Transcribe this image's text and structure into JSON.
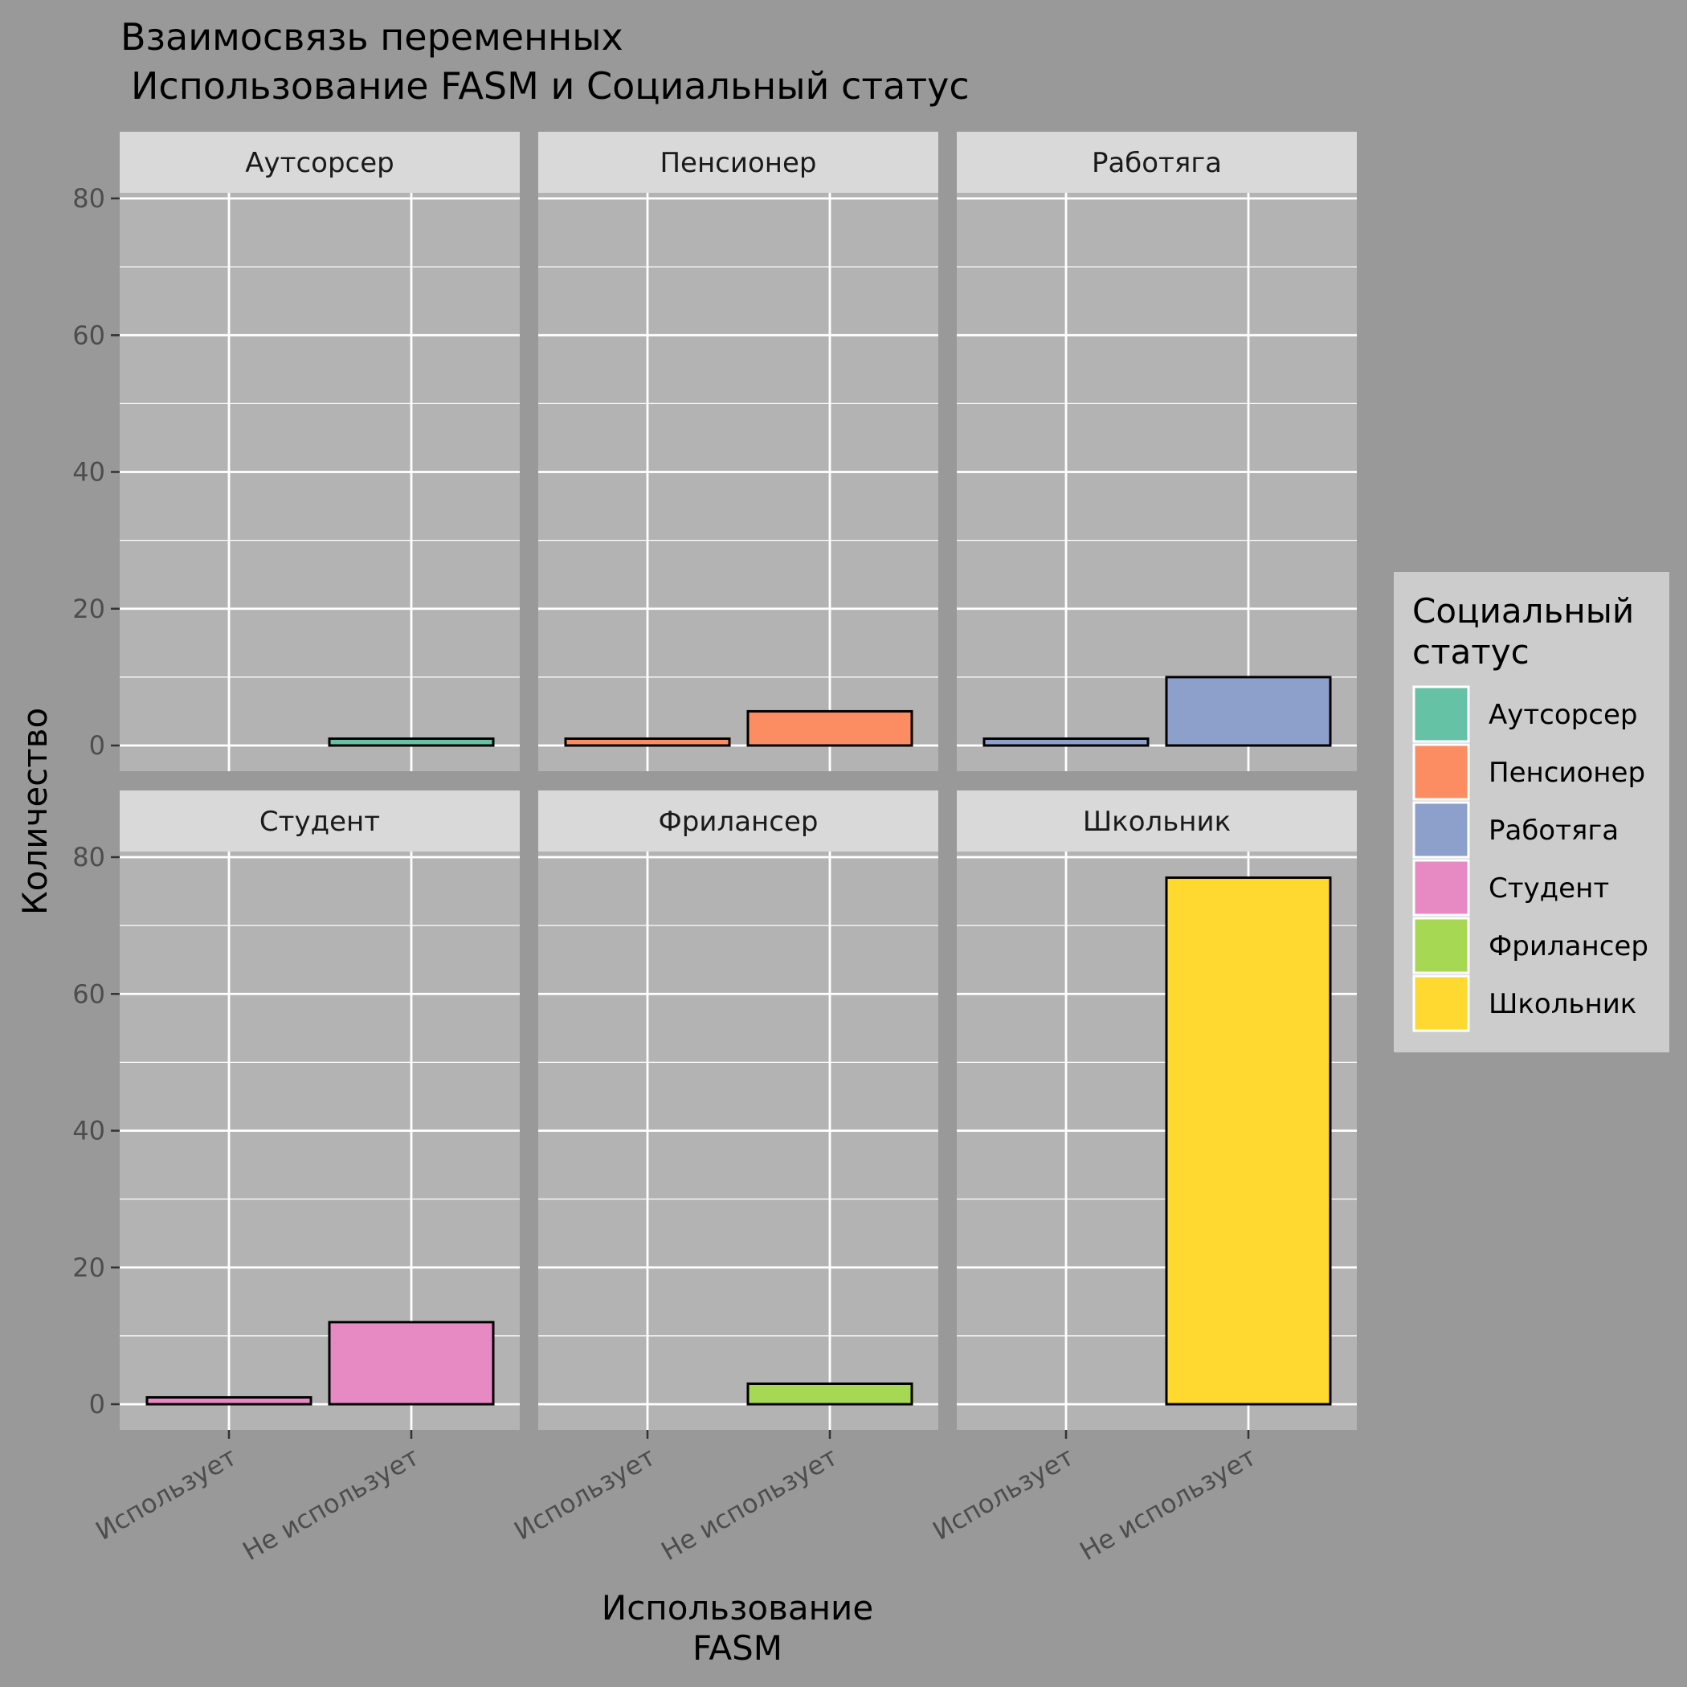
{
  "chart_data": {
    "type": "bar",
    "title_lines": [
      "Взаимосвязь переменных",
      "Использование FASM и Социальный статус"
    ],
    "xlabel_lines": [
      "Использование",
      "FASM"
    ],
    "ylabel": "Количество",
    "ylim": [
      0,
      80
    ],
    "yticks": [
      "0",
      "20",
      "40",
      "60",
      "80"
    ],
    "categories": [
      "Использует",
      "Не использует"
    ],
    "grid": true,
    "legend": {
      "title_lines": [
        "Социальный",
        "статус"
      ],
      "position": "right"
    },
    "facets": [
      {
        "name": "Аутсорсер",
        "color": "#66C2A5",
        "values": [
          0,
          1
        ]
      },
      {
        "name": "Пенсионер",
        "color": "#FC8D62",
        "values": [
          1,
          5
        ]
      },
      {
        "name": "Работяга",
        "color": "#8DA0CB",
        "values": [
          1,
          10
        ]
      },
      {
        "name": "Студент",
        "color": "#E78AC3",
        "values": [
          1,
          12
        ]
      },
      {
        "name": "Фрилансер",
        "color": "#A6D854",
        "values": [
          0,
          3
        ]
      },
      {
        "name": "Школьник",
        "color": "#FFD92F",
        "values": [
          0,
          77
        ]
      }
    ]
  }
}
